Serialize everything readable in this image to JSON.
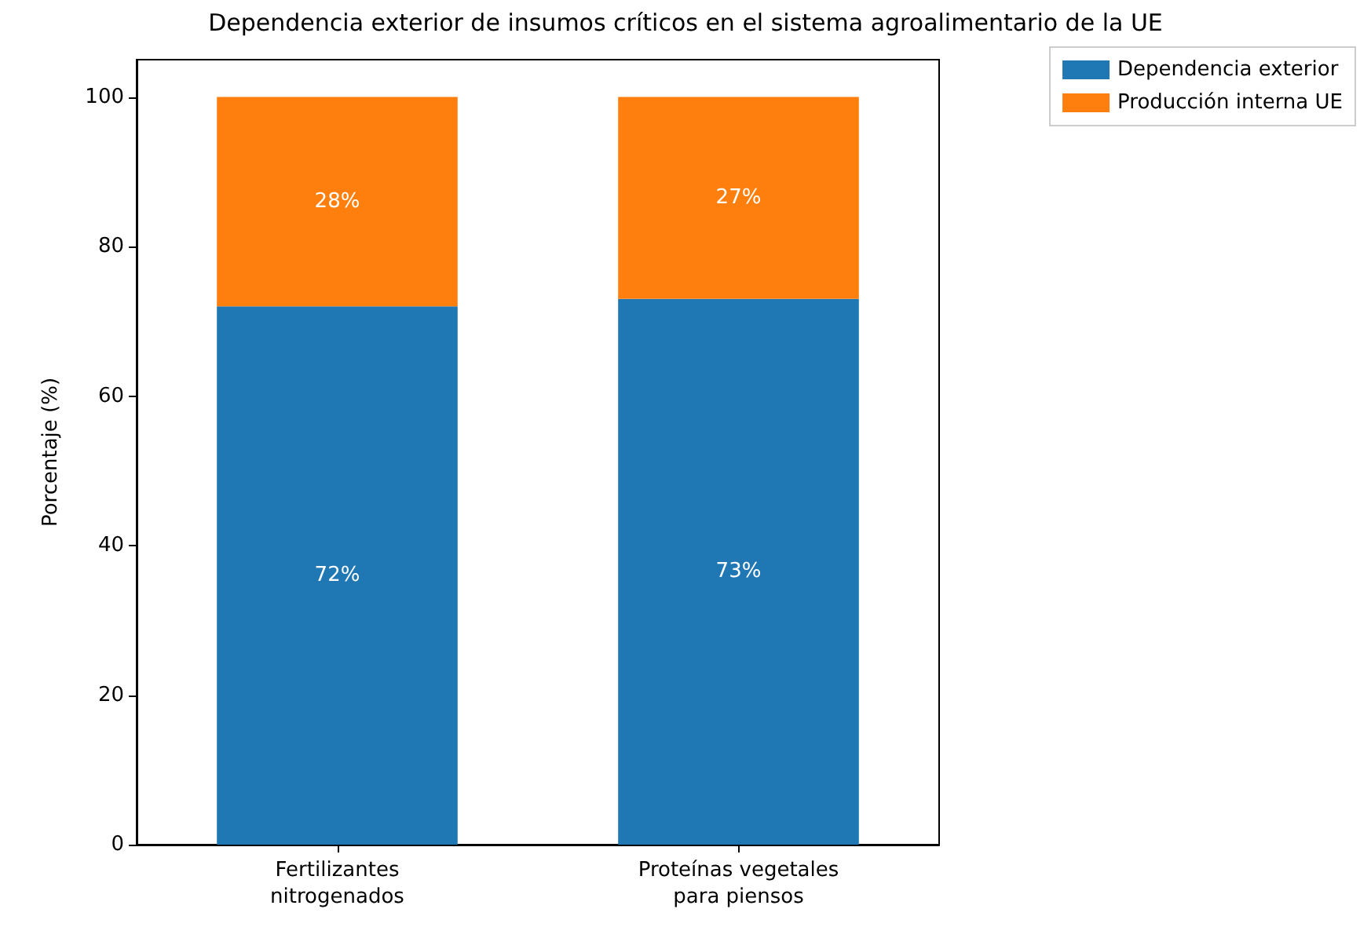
{
  "chart_data": {
    "type": "bar",
    "title": "Dependencia exterior de insumos críticos en el sistema agroalimentario de la UE",
    "ylabel": "Porcentaje (%)",
    "categories": [
      "Fertilizantes\nnitrogenados",
      "Proteínas vegetales\npara piensos"
    ],
    "series": [
      {
        "name": "Dependencia exterior",
        "color": "#1f77b4",
        "values": [
          72,
          73
        ],
        "value_labels": [
          "72%",
          "73%"
        ]
      },
      {
        "name": "Producción interna UE",
        "color": "#ff7f0e",
        "values": [
          28,
          27
        ],
        "value_labels": [
          "28%",
          "27%"
        ]
      }
    ],
    "stacked": true,
    "ylim": [
      0,
      105
    ],
    "yticks": [
      0,
      20,
      40,
      60,
      80,
      100
    ],
    "grid": false,
    "legend": "top right"
  }
}
